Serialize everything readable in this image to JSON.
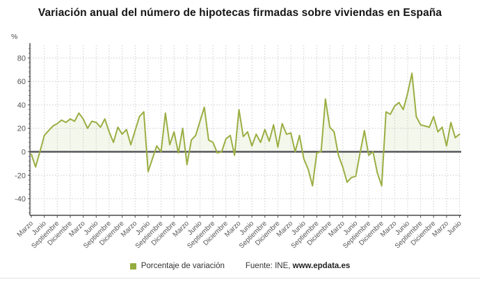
{
  "chart_data": {
    "type": "line",
    "title": "Variación anual del número de hipotecas firmadas sobre viviendas en España",
    "unit": "%",
    "ylabel": "%",
    "xlabel": "",
    "grid": "dotted",
    "legend_position": "bottom",
    "ylim": [
      -54,
      91
    ],
    "y_ticks": [
      80,
      60,
      40,
      20,
      0,
      -20,
      -40
    ],
    "x_tick_every": 3,
    "x_tick_labels": [
      "Marzo",
      "Junio",
      "Septiembre",
      "Diciembre",
      "Marzo",
      "Junio",
      "Septiembre",
      "Diciembre",
      "Marzo",
      "Junio",
      "Septiembre",
      "Diciembre",
      "Marzo",
      "Junio",
      "Septiembre",
      "Diciembre",
      "Marzo",
      "Junio",
      "Septiembre",
      "Diciembre",
      "Marzo",
      "Junio",
      "Septiembre",
      "Diciembre",
      "Marzo",
      "Junio",
      "Septiembre",
      "Diciembre",
      "Marzo",
      "Junio",
      "Septiembre",
      "Diciembre",
      "Marzo",
      "Junio"
    ],
    "series": [
      {
        "name": "Porcentaje de variación",
        "color": "#94ad3e",
        "fill_color": "rgba(148,173,62,0.10)",
        "values": [
          -2,
          -13,
          0,
          14,
          18,
          22,
          24,
          27,
          25,
          28,
          26,
          33,
          28,
          20,
          26,
          25,
          21,
          28,
          17,
          8,
          21,
          15,
          19,
          6,
          18,
          30,
          34,
          -17,
          -6,
          5,
          0,
          33,
          6,
          17,
          -1,
          20,
          -11,
          10,
          14,
          26,
          38,
          10,
          8,
          -1,
          0,
          11,
          14,
          -3,
          36,
          13,
          17,
          5,
          15,
          8,
          19,
          9,
          23,
          4,
          24,
          15,
          16,
          0,
          14,
          -6,
          -15,
          -29,
          -1,
          0,
          45,
          21,
          17,
          -3,
          -13,
          -26,
          -22,
          -21,
          -1,
          18,
          -3,
          0,
          -18,
          -29,
          34,
          32,
          39,
          42,
          36,
          50,
          67,
          30,
          23,
          22,
          21,
          30,
          17,
          21,
          5,
          25,
          12,
          15
        ]
      }
    ]
  },
  "legend": {
    "label": "Porcentaje de variación",
    "swatch_color": "#94ad3e"
  },
  "source": {
    "prefix": "Fuente: INE, ",
    "site": "www.epdata.es"
  },
  "colors": {
    "line": "#9aae43",
    "fill": "rgba(148,173,62,0.10)",
    "axis": "#4a4a4a",
    "grid": "#ccccd6",
    "zero_line": "#55565a",
    "tick_text": "#555555",
    "title_text": "#151515"
  }
}
